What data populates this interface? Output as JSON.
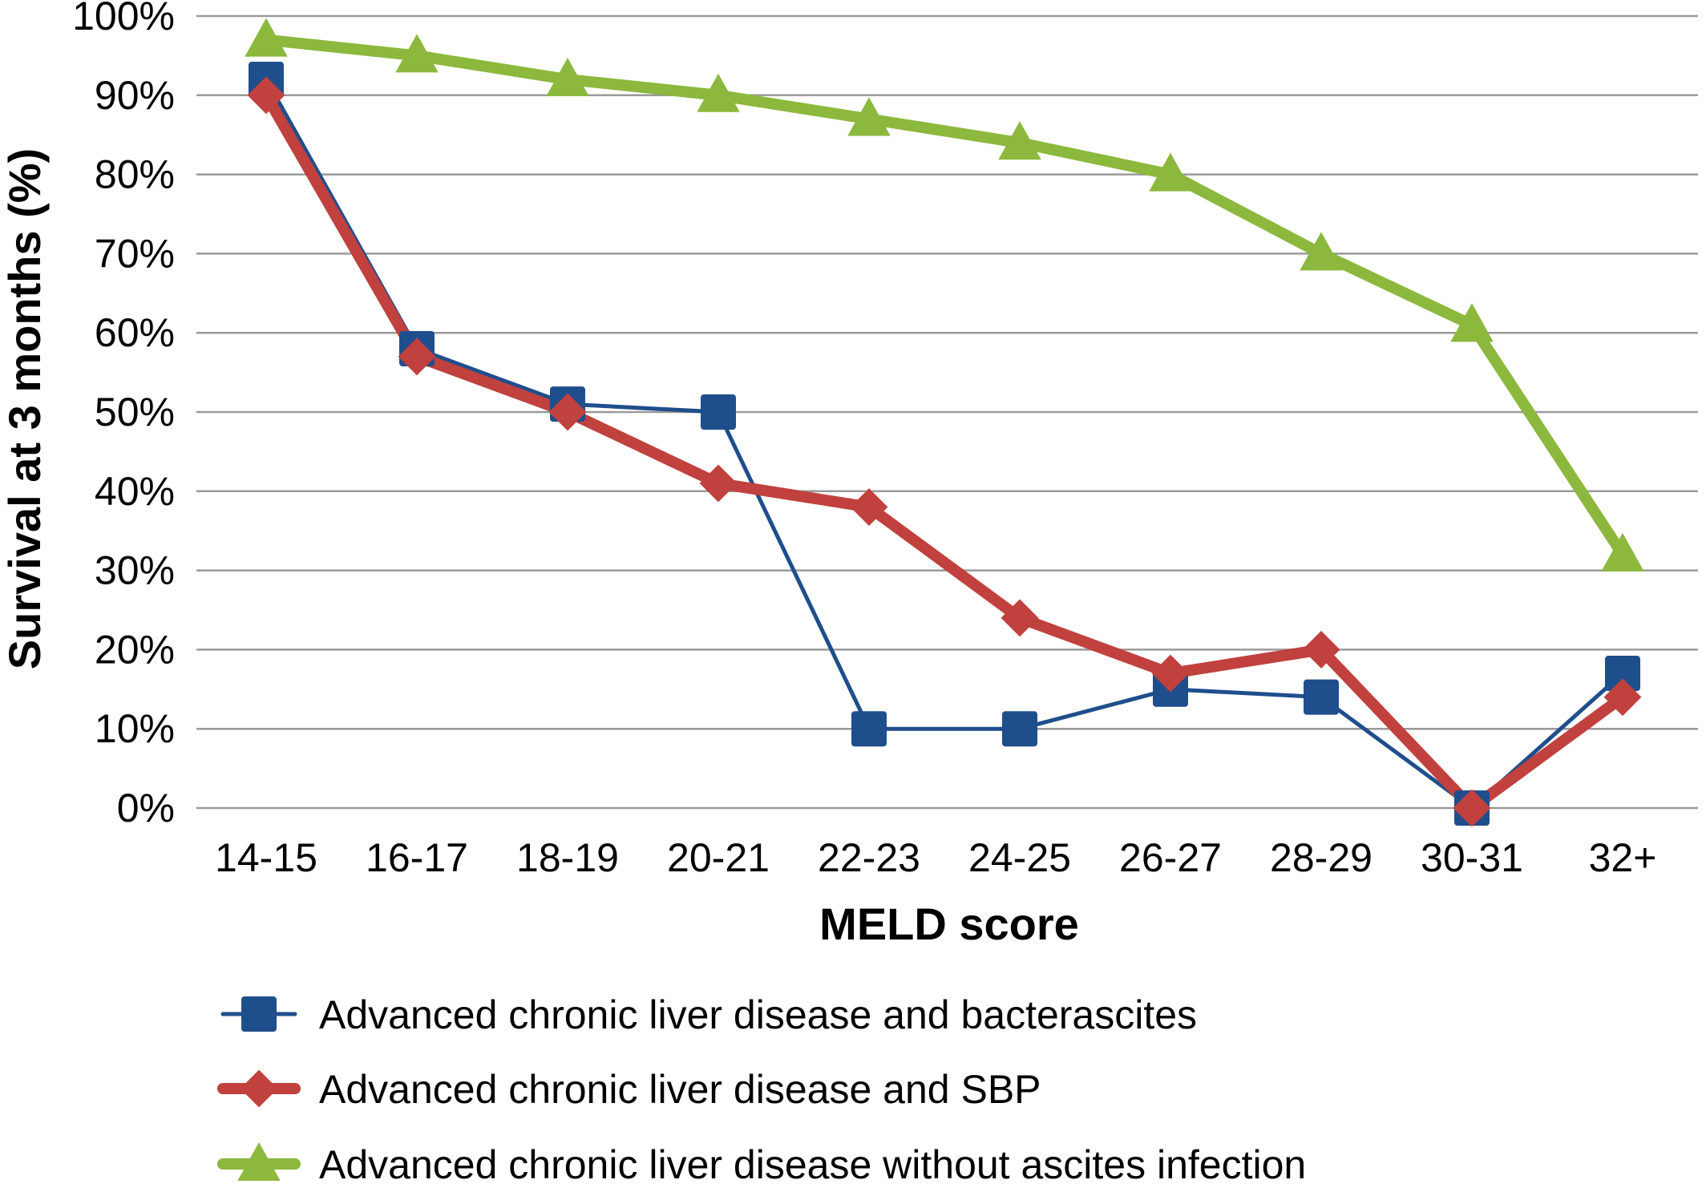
{
  "chart_data": {
    "type": "line",
    "xlabel": "MELD score",
    "ylabel": "Survival at 3 months (%)",
    "categories": [
      "14-15",
      "16-17",
      "18-19",
      "20-21",
      "22-23",
      "24-25",
      "26-27",
      "28-29",
      "30-31",
      "32+"
    ],
    "ylim": [
      0,
      100
    ],
    "yticks": [
      0,
      10,
      20,
      30,
      40,
      50,
      60,
      70,
      80,
      90,
      100
    ],
    "ytick_labels": [
      "0%",
      "10%",
      "20%",
      "30%",
      "40%",
      "50%",
      "60%",
      "70%",
      "80%",
      "90%",
      "100%"
    ],
    "grid": true,
    "legend_position": "bottom",
    "series": [
      {
        "name": "Advanced chronic liver disease and bacterascites",
        "color": "#1f4e8c",
        "marker": "square",
        "values": [
          92,
          58,
          51,
          50,
          10,
          10,
          15,
          14,
          0,
          17
        ]
      },
      {
        "name": "Advanced chronic liver disease and SBP",
        "color": "#c0413d",
        "marker": "diamond",
        "values": [
          90,
          57,
          50,
          41,
          38,
          24,
          17,
          20,
          0,
          14
        ]
      },
      {
        "name": "Advanced chronic liver disease without ascites infection",
        "color": "#8cb83d",
        "marker": "triangle",
        "values": [
          97,
          95,
          92,
          90,
          87,
          84,
          80,
          70,
          61,
          32
        ]
      }
    ]
  }
}
